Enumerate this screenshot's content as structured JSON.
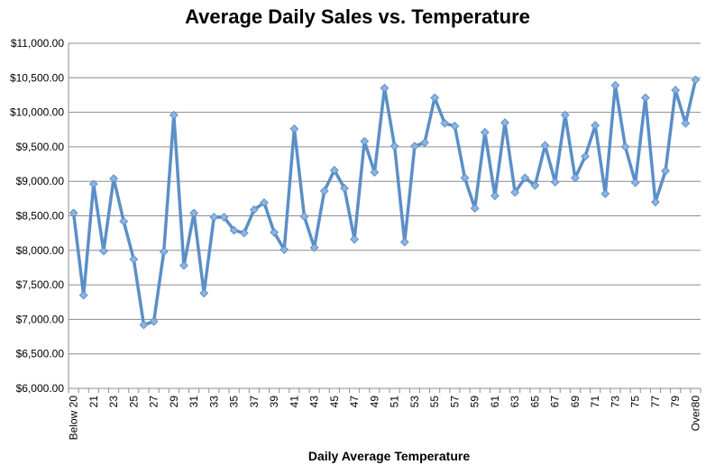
{
  "chart_data": {
    "type": "line",
    "title": "Average Daily Sales vs. Temperature",
    "xlabel": "Daily Average Temperature",
    "ylabel": "",
    "ylim": [
      6000,
      11000
    ],
    "y_ticks": [
      "$6,000.00",
      "$6,500.00",
      "$7,000.00",
      "$7,500.00",
      "$8,000.00",
      "$8,500.00",
      "$9,000.00",
      "$9,500.00",
      "$10,000.00",
      "$10,500.00",
      "$11,000.00"
    ],
    "grid": true,
    "legend": "none",
    "line_color": "#5b8fc7",
    "marker_color": "#8fb4e3",
    "categories": [
      "Below 20",
      "20",
      "21",
      "22",
      "23",
      "24",
      "25",
      "26",
      "27",
      "28",
      "29",
      "30",
      "31",
      "32",
      "33",
      "34",
      "35",
      "36",
      "37",
      "38",
      "39",
      "40",
      "41",
      "42",
      "43",
      "44",
      "45",
      "46",
      "47",
      "48",
      "49",
      "50",
      "51",
      "52",
      "53",
      "54",
      "55",
      "56",
      "57",
      "58",
      "59",
      "60",
      "61",
      "62",
      "63",
      "64",
      "65",
      "66",
      "67",
      "68",
      "69",
      "70",
      "71",
      "72",
      "73",
      "74",
      "75",
      "76",
      "77",
      "78",
      "79",
      "80",
      "Over80"
    ],
    "x_tick_labels": [
      "Below 20",
      "21",
      "23",
      "25",
      "27",
      "29",
      "31",
      "33",
      "35",
      "37",
      "39",
      "41",
      "43",
      "45",
      "47",
      "49",
      "51",
      "53",
      "55",
      "57",
      "59",
      "61",
      "63",
      "65",
      "67",
      "69",
      "71",
      "73",
      "75",
      "77",
      "79",
      "Over80"
    ],
    "values": [
      8540,
      7350,
      8960,
      7990,
      9040,
      8420,
      7870,
      6920,
      6970,
      7980,
      9960,
      7780,
      8540,
      7380,
      8480,
      8480,
      8290,
      8250,
      8590,
      8690,
      8260,
      8010,
      9760,
      8490,
      8040,
      8860,
      9160,
      8900,
      8160,
      9580,
      9130,
      10350,
      9510,
      8120,
      9510,
      9560,
      10210,
      9840,
      9800,
      9050,
      8610,
      9710,
      8790,
      9850,
      8840,
      9050,
      8940,
      9520,
      8990,
      9960,
      9050,
      9360,
      9810,
      8820,
      10390,
      9500,
      8980,
      10210,
      8700,
      9150,
      10320,
      9840,
      10470
    ]
  }
}
